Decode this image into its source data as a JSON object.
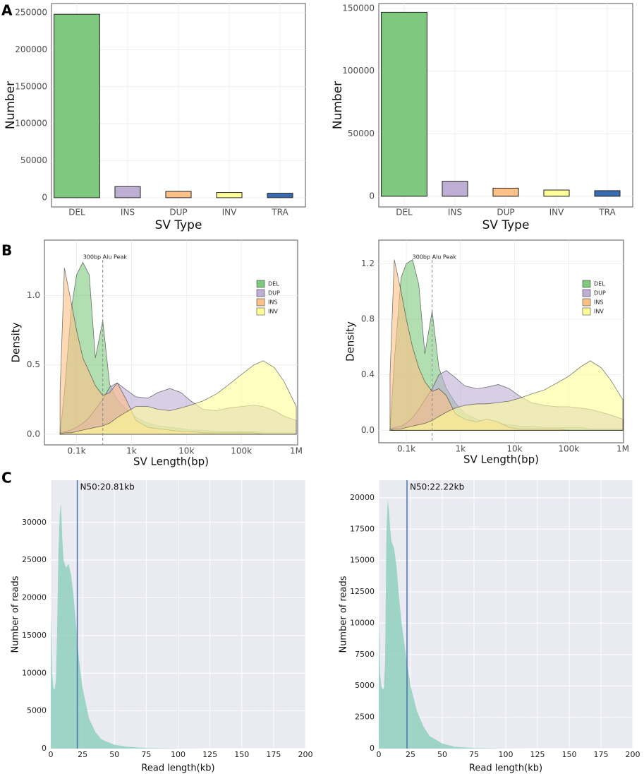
{
  "panel_labels": [
    "A",
    "B",
    "C"
  ],
  "chart_data": [
    {
      "type": "bar",
      "x_label": "SV Type",
      "y_label": "Number",
      "categories": [
        "DEL",
        "INS",
        "DUP",
        "INV",
        "TRA"
      ],
      "values": [
        248000,
        15000,
        8500,
        7000,
        6000
      ],
      "colors": [
        "#7fc97f",
        "#beaed4",
        "#fdc086",
        "#ffff99",
        "#386cb0"
      ],
      "ylim": [
        -12500,
        262500
      ],
      "yticks": [
        0,
        50000,
        100000,
        150000,
        200000,
        250000
      ],
      "grid": true
    },
    {
      "type": "bar",
      "x_label": "SV Type",
      "y_label": "Number",
      "categories": [
        "DEL",
        "INS",
        "DUP",
        "INV",
        "TRA"
      ],
      "values": [
        147000,
        12000,
        6500,
        5000,
        4500
      ],
      "colors": [
        "#7fc97f",
        "#beaed4",
        "#fdc086",
        "#ffff99",
        "#386cb0"
      ],
      "ylim": [
        -8500,
        154000
      ],
      "yticks": [
        0,
        50000,
        100000,
        150000
      ],
      "grid": true
    },
    {
      "type": "density",
      "x_label": "SV Length(bp)",
      "y_label": "Density",
      "log_x": true,
      "grid": true,
      "legend": "top-right",
      "annotation": {
        "text": "300bp Alu Peak",
        "x": 300
      },
      "x": [
        50,
        60,
        80,
        100,
        130,
        170,
        220,
        300,
        400,
        550,
        800,
        1200,
        2000,
        3000,
        5000,
        8000,
        12000,
        20000,
        35000,
        60000,
        100000,
        170000,
        250000,
        400000,
        600000,
        1000000
      ],
      "series": [
        {
          "name": "DEL",
          "color": "#7fc97f",
          "values": [
            0,
            0.3,
            0.9,
            1.15,
            1.24,
            1.15,
            0.55,
            0.82,
            0.36,
            0.25,
            0.18,
            0.12,
            0.08,
            0.06,
            0.05,
            0.04,
            0.03,
            0.03,
            0.02,
            0.02,
            0.02,
            0.02,
            0.01,
            0.01,
            0.01,
            0.01
          ]
        },
        {
          "name": "DUP",
          "color": "#beaed4",
          "values": [
            0.01,
            0.02,
            0.03,
            0.05,
            0.08,
            0.12,
            0.18,
            0.25,
            0.34,
            0.37,
            0.32,
            0.27,
            0.26,
            0.3,
            0.33,
            0.3,
            0.24,
            0.18,
            0.17,
            0.19,
            0.2,
            0.21,
            0.2,
            0.17,
            0.13,
            0.1
          ]
        },
        {
          "name": "INS",
          "color": "#fdc086",
          "values": [
            0.3,
            1.2,
            0.95,
            0.75,
            0.55,
            0.45,
            0.35,
            0.28,
            0.3,
            0.37,
            0.25,
            0.1,
            0.05,
            0.04,
            0.03,
            0.02,
            0.02,
            0.01,
            0.01,
            0.01,
            0.01,
            0.01,
            0,
            0,
            0,
            0
          ]
        },
        {
          "name": "INV",
          "color": "#ffff99",
          "values": [
            0,
            0.01,
            0.01,
            0.02,
            0.03,
            0.04,
            0.05,
            0.06,
            0.08,
            0.12,
            0.16,
            0.2,
            0.2,
            0.18,
            0.17,
            0.19,
            0.21,
            0.24,
            0.29,
            0.36,
            0.43,
            0.5,
            0.53,
            0.48,
            0.38,
            0.2
          ]
        }
      ],
      "xlim": [
        26,
        1060000
      ],
      "xticks": [
        {
          "value": 100,
          "label": "0.1k"
        },
        {
          "value": 1000,
          "label": "1k"
        },
        {
          "value": 10000,
          "label": "10k"
        },
        {
          "value": 100000,
          "label": "100k"
        },
        {
          "value": 1000000,
          "label": "1M"
        }
      ],
      "ylim": [
        -0.077,
        1.4
      ],
      "yticks": [
        {
          "value": 0,
          "label": "0.0"
        },
        {
          "value": 0.5,
          "label": "0.5"
        },
        {
          "value": 1,
          "label": "1.0"
        }
      ]
    },
    {
      "type": "density",
      "x_label": "SV Length(bp)",
      "y_label": "Density",
      "log_x": true,
      "grid": true,
      "legend": "top-right",
      "annotation": {
        "text": "300bp Alu Peak",
        "x": 300
      },
      "x": [
        50,
        60,
        80,
        100,
        130,
        170,
        220,
        300,
        400,
        550,
        800,
        1200,
        2000,
        3000,
        5000,
        8000,
        12000,
        20000,
        35000,
        60000,
        100000,
        170000,
        250000,
        400000,
        600000,
        1000000
      ],
      "series": [
        {
          "name": "DEL",
          "color": "#7fc97f",
          "values": [
            0,
            0.5,
            1.1,
            1.2,
            1.23,
            1.05,
            0.55,
            0.86,
            0.45,
            0.3,
            0.2,
            0.12,
            0.08,
            0.06,
            0.05,
            0.04,
            0.03,
            0.03,
            0.02,
            0.02,
            0.02,
            0.02,
            0.01,
            0.01,
            0.01,
            0.01
          ]
        },
        {
          "name": "DUP",
          "color": "#beaed4",
          "values": [
            0.01,
            0.02,
            0.03,
            0.05,
            0.09,
            0.15,
            0.22,
            0.3,
            0.4,
            0.43,
            0.38,
            0.32,
            0.3,
            0.31,
            0.33,
            0.3,
            0.25,
            0.2,
            0.18,
            0.17,
            0.17,
            0.16,
            0.15,
            0.13,
            0.11,
            0.08
          ]
        },
        {
          "name": "INS",
          "color": "#fdc086",
          "values": [
            0.4,
            1.23,
            1.0,
            0.8,
            0.6,
            0.45,
            0.35,
            0.28,
            0.3,
            0.25,
            0.12,
            0.08,
            0.06,
            0.08,
            0.06,
            0.02,
            0.01,
            0.01,
            0.01,
            0.01,
            0,
            0,
            0,
            0,
            0,
            0
          ]
        },
        {
          "name": "INV",
          "color": "#ffff99",
          "values": [
            0,
            0.01,
            0.01,
            0.02,
            0.03,
            0.04,
            0.05,
            0.07,
            0.1,
            0.13,
            0.16,
            0.18,
            0.19,
            0.19,
            0.2,
            0.21,
            0.23,
            0.26,
            0.29,
            0.34,
            0.39,
            0.46,
            0.5,
            0.45,
            0.36,
            0.22
          ]
        }
      ],
      "xlim": [
        31,
        1030000
      ],
      "xticks": [
        {
          "value": 100,
          "label": "0.1k"
        },
        {
          "value": 1000,
          "label": "1k"
        },
        {
          "value": 10000,
          "label": "10k"
        },
        {
          "value": 100000,
          "label": "100k"
        },
        {
          "value": 1000000,
          "label": "1M"
        }
      ],
      "ylim": [
        -0.09,
        1.37
      ],
      "yticks": [
        {
          "value": 0,
          "label": "0.0"
        },
        {
          "value": 0.4,
          "label": "0.4"
        },
        {
          "value": 0.8,
          "label": "0.8"
        },
        {
          "value": 1.2,
          "label": "1.2"
        }
      ]
    },
    {
      "type": "area",
      "x_label": "Read length(kb)",
      "y_label": "Number of reads",
      "color": "#8fd0be",
      "line_color": "#4c72b0",
      "grid": true,
      "annotation": {
        "text": "N50:20.81kb",
        "x": 20.81
      },
      "x": [
        0,
        1,
        2,
        3,
        4,
        5,
        6,
        7,
        8,
        9,
        10,
        12,
        14,
        16,
        18,
        20,
        22,
        25,
        30,
        35,
        40,
        50,
        60,
        75,
        100,
        125,
        150,
        200
      ],
      "values": [
        18000,
        10000,
        8000,
        7800,
        9000,
        16000,
        26000,
        31000,
        32500,
        28000,
        25000,
        24000,
        24500,
        23000,
        20000,
        16000,
        12000,
        8000,
        4000,
        2200,
        1200,
        500,
        250,
        80,
        20,
        5,
        0,
        0
      ],
      "xlim": [
        0,
        200
      ],
      "xticks": [
        0,
        25,
        50,
        75,
        100,
        125,
        150,
        175,
        200
      ],
      "ylim": [
        0,
        35600
      ],
      "yticks": [
        0,
        5000,
        10000,
        15000,
        20000,
        25000,
        30000
      ]
    },
    {
      "type": "area",
      "x_label": "Read length(kb)",
      "y_label": "Number of reads",
      "color": "#8fd0be",
      "line_color": "#4c72b0",
      "grid": true,
      "annotation": {
        "text": "N50:22.22kb",
        "x": 22.22
      },
      "x": [
        0,
        1,
        2,
        3,
        4,
        5,
        6,
        7,
        8,
        9,
        10,
        12,
        14,
        16,
        18,
        20,
        22,
        25,
        30,
        35,
        40,
        50,
        60,
        75,
        100,
        125,
        150,
        200
      ],
      "values": [
        10500,
        6000,
        5000,
        4700,
        4800,
        7000,
        17000,
        19800,
        19000,
        17500,
        16500,
        16000,
        14500,
        12000,
        10000,
        8500,
        7000,
        5000,
        3000,
        1800,
        1000,
        400,
        150,
        50,
        10,
        2,
        0,
        0
      ],
      "xlim": [
        0,
        200
      ],
      "xticks": [
        0,
        25,
        50,
        75,
        100,
        125,
        150,
        175,
        200
      ],
      "ylim": [
        0,
        21400
      ],
      "yticks": [
        0,
        2500,
        5000,
        7500,
        10000,
        12500,
        15000,
        17500,
        20000
      ]
    }
  ]
}
